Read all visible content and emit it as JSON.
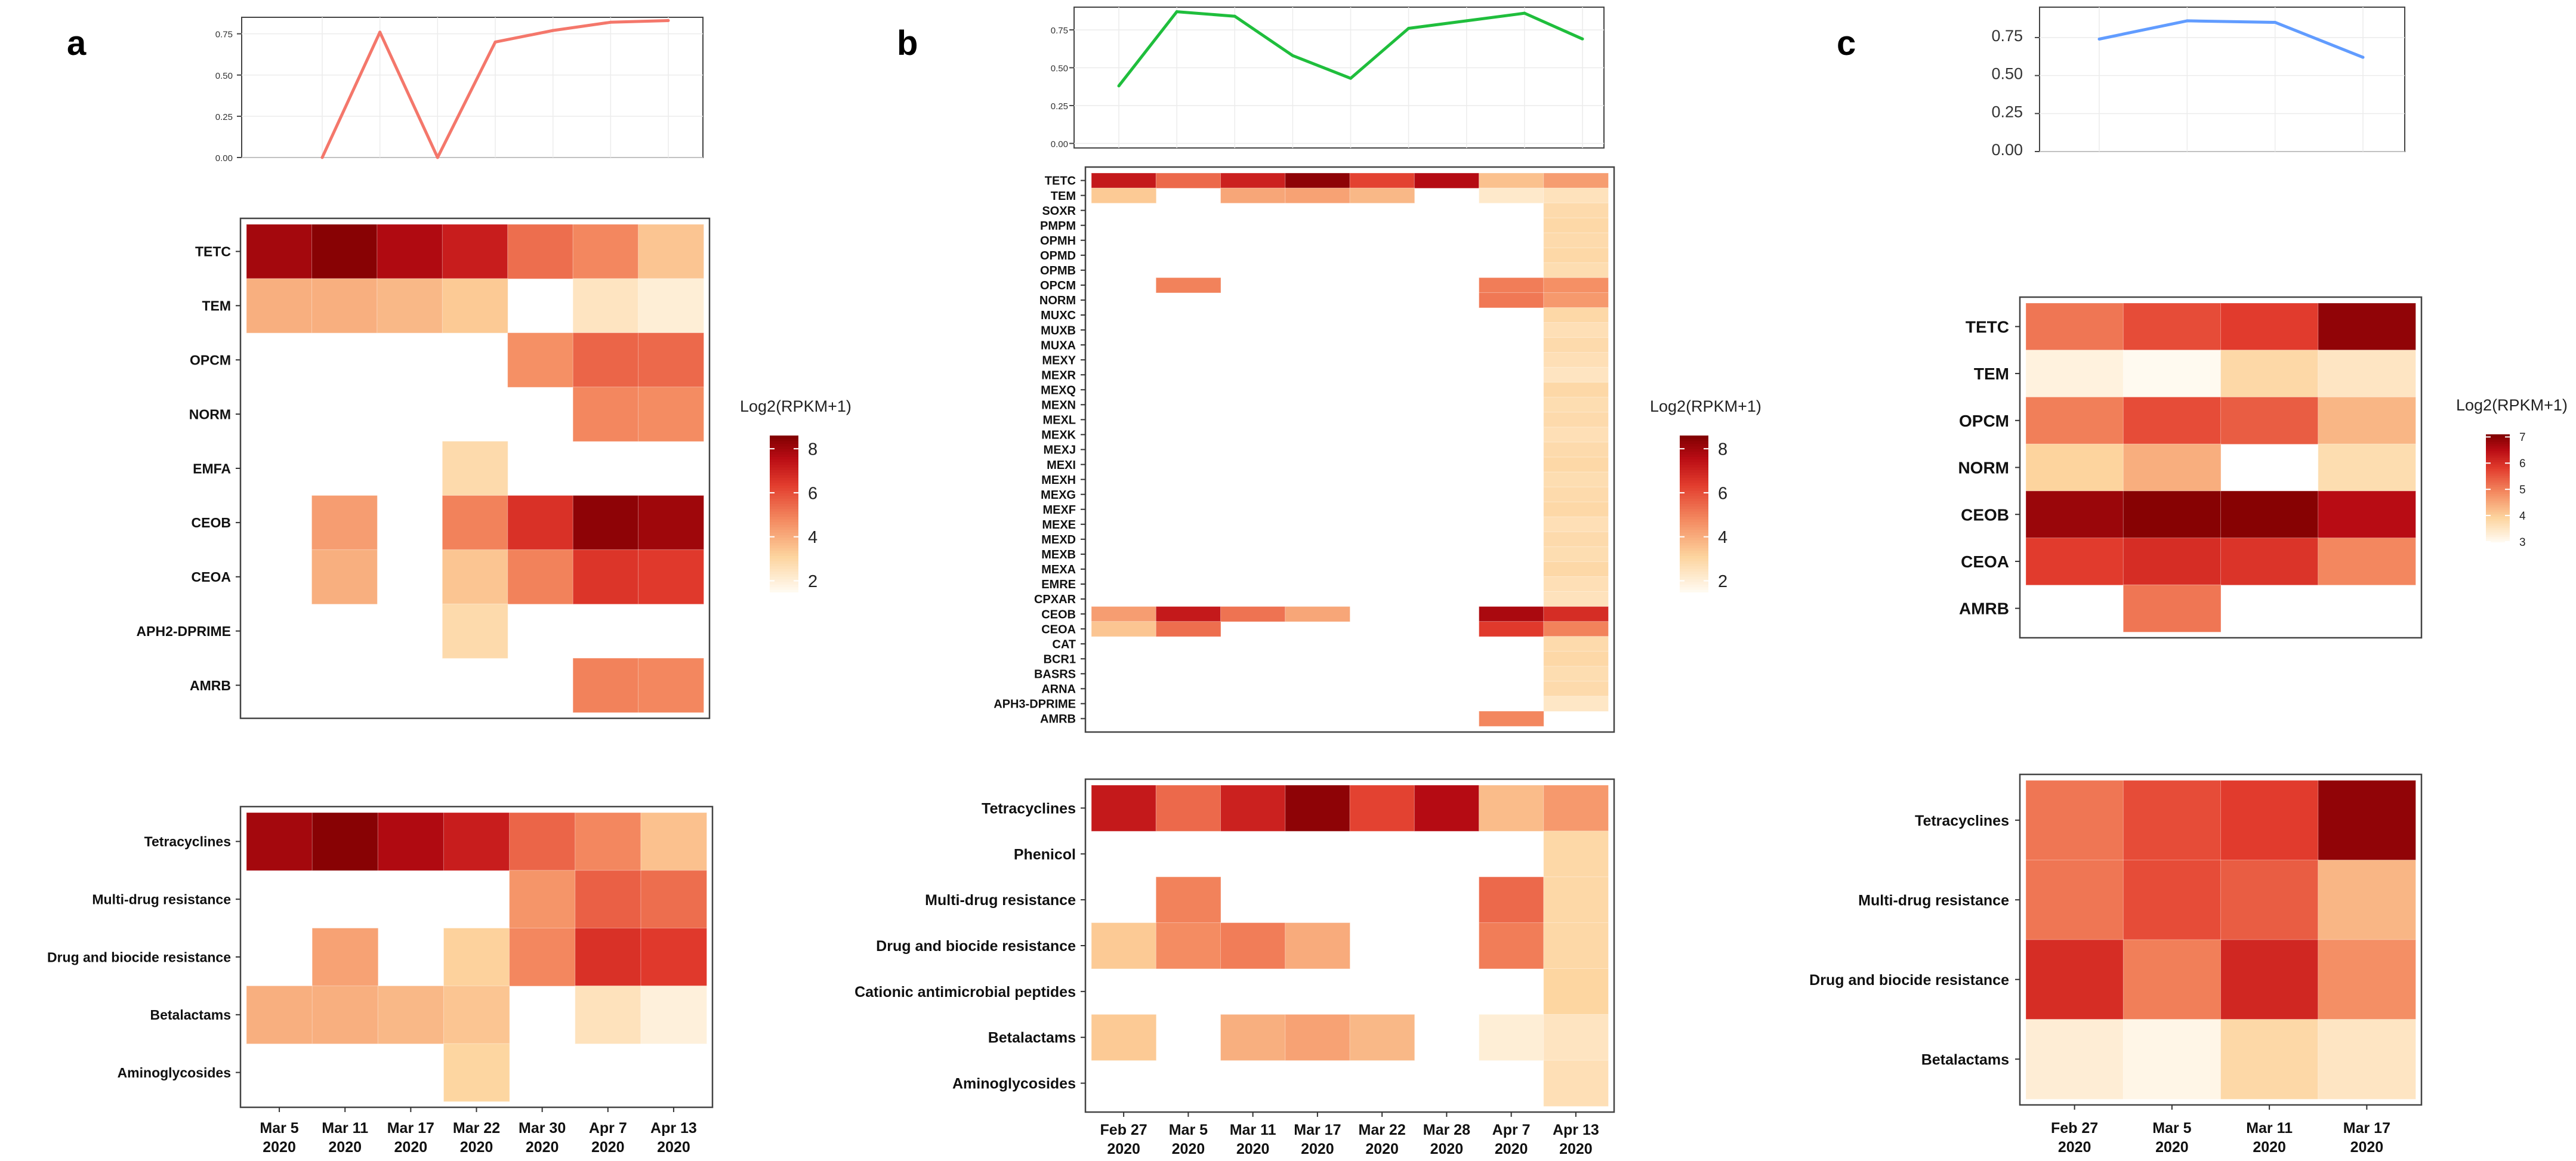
{
  "panel_labels": [
    "a",
    "b",
    "c"
  ],
  "chart_data": [
    {
      "id": "a-line",
      "type": "line",
      "color": "#F4776B",
      "yticks": [
        "0.00",
        "0.25",
        "0.50",
        "0.75"
      ],
      "ylim": [
        0,
        0.85
      ],
      "values": [
        0.0,
        0.76,
        0.0,
        0.7,
        0.77,
        0.82,
        0.83
      ]
    },
    {
      "id": "a-genes",
      "type": "heatmap",
      "columns": [
        "Mar 5",
        "Mar 11",
        "Mar 17",
        "Mar 22",
        "Mar 30",
        "Apr 7",
        "Apr 13"
      ],
      "column_years": [
        "2020",
        "2020",
        "2020",
        "2020",
        "2020",
        "2020",
        "2020"
      ],
      "rows": [
        "TETC",
        "TEM",
        "OPCM",
        "NORM",
        "EMFA",
        "CEOB",
        "CEOA",
        "APH2-DPRIME",
        "AMRB"
      ],
      "values": [
        [
          7.9,
          8.4,
          7.7,
          7.1,
          5.3,
          4.8,
          3.4
        ],
        [
          3.9,
          3.9,
          3.7,
          3.3,
          null,
          2.4,
          2.0
        ],
        [
          null,
          null,
          null,
          null,
          4.6,
          5.5,
          5.4
        ],
        [
          null,
          null,
          null,
          null,
          null,
          4.8,
          4.7
        ],
        [
          null,
          null,
          null,
          2.8,
          null,
          null,
          null
        ],
        [
          null,
          4.3,
          null,
          4.9,
          6.6,
          8.3,
          8.0
        ],
        [
          null,
          3.9,
          null,
          3.4,
          4.9,
          6.5,
          6.4
        ],
        [
          null,
          null,
          null,
          2.8,
          null,
          null,
          null
        ],
        [
          null,
          null,
          null,
          null,
          null,
          4.9,
          4.8
        ]
      ],
      "legend_title": "Log2(RPKM+1)",
      "legend_ticks": [
        "2",
        "4",
        "6",
        "8"
      ],
      "scale": [
        1.5,
        8.6
      ]
    },
    {
      "id": "a-classes",
      "type": "heatmap",
      "columns": [
        "Mar 5",
        "Mar 11",
        "Mar 17",
        "Mar 22",
        "Mar 30",
        "Apr 7",
        "Apr 13"
      ],
      "column_years": [
        "2020",
        "2020",
        "2020",
        "2020",
        "2020",
        "2020",
        "2020"
      ],
      "rows": [
        "Tetracyclines",
        "Multi-drug resistance",
        "Drug and biocide resistance",
        "Betalactams",
        "Aminoglycosides"
      ],
      "values": [
        [
          7.9,
          8.4,
          7.7,
          7.1,
          5.5,
          4.8,
          3.5
        ],
        [
          null,
          null,
          null,
          null,
          4.5,
          5.6,
          5.3
        ],
        [
          null,
          4.2,
          null,
          3.1,
          4.8,
          6.6,
          6.4
        ],
        [
          3.9,
          3.9,
          3.7,
          3.4,
          null,
          2.5,
          1.9
        ],
        [
          null,
          null,
          null,
          3.0,
          null,
          null,
          null
        ]
      ],
      "scale": [
        1.5,
        8.6
      ]
    },
    {
      "id": "b-line",
      "type": "line",
      "color": "#1FBE3C",
      "yticks": [
        "0.00",
        "0.25",
        "0.50",
        "0.75"
      ],
      "ylim": [
        -0.03,
        0.9
      ],
      "values": [
        0.38,
        0.87,
        0.84,
        0.58,
        0.43,
        0.76,
        0.81,
        0.86,
        0.69
      ]
    },
    {
      "id": "b-genes",
      "type": "heatmap",
      "columns": [
        "Feb 27",
        "Mar 5",
        "Mar 11",
        "Mar 17",
        "Mar 22",
        "Mar 28",
        "Apr 7",
        "Apr 13"
      ],
      "column_years": [
        "2020",
        "2020",
        "2020",
        "2020",
        "2020",
        "2020",
        "2020",
        "2020"
      ],
      "rows": [
        "TETC",
        "TEM",
        "SOXR",
        "PMPM",
        "OPMH",
        "OPMD",
        "OPMB",
        "OPCM",
        "NORM",
        "MUXC",
        "MUXB",
        "MUXA",
        "MEXY",
        "MEXR",
        "MEXQ",
        "MEXN",
        "MEXL",
        "MEXK",
        "MEXJ",
        "MEXI",
        "MEXH",
        "MEXG",
        "MEXF",
        "MEXE",
        "MEXD",
        "MEXB",
        "MEXA",
        "EMRE",
        "CPXAR",
        "CEOB",
        "CEOA",
        "CAT",
        "BCR1",
        "BASRS",
        "ARNA",
        "APH3-DPRIME",
        "AMRB"
      ],
      "values": [
        [
          7.2,
          5.4,
          7.0,
          8.3,
          6.2,
          7.6,
          3.5,
          4.3
        ],
        [
          3.3,
          null,
          4.1,
          4.2,
          3.7,
          null,
          2.2,
          2.5
        ],
        [
          null,
          null,
          null,
          null,
          null,
          null,
          null,
          2.8
        ],
        [
          null,
          null,
          null,
          null,
          null,
          null,
          null,
          2.9
        ],
        [
          null,
          null,
          null,
          null,
          null,
          null,
          null,
          2.8
        ],
        [
          null,
          null,
          null,
          null,
          null,
          null,
          null,
          2.9
        ],
        [
          null,
          null,
          null,
          null,
          null,
          null,
          null,
          2.7
        ],
        [
          null,
          4.9,
          null,
          null,
          null,
          null,
          5.0,
          4.6
        ],
        [
          null,
          null,
          null,
          null,
          null,
          null,
          5.1,
          4.4
        ],
        [
          null,
          null,
          null,
          null,
          null,
          null,
          null,
          2.9
        ],
        [
          null,
          null,
          null,
          null,
          null,
          null,
          null,
          2.6
        ],
        [
          null,
          null,
          null,
          null,
          null,
          null,
          null,
          2.8
        ],
        [
          null,
          null,
          null,
          null,
          null,
          null,
          null,
          2.6
        ],
        [
          null,
          null,
          null,
          null,
          null,
          null,
          null,
          2.4
        ],
        [
          null,
          null,
          null,
          null,
          null,
          null,
          null,
          2.9
        ],
        [
          null,
          null,
          null,
          null,
          null,
          null,
          null,
          2.7
        ],
        [
          null,
          null,
          null,
          null,
          null,
          null,
          null,
          2.8
        ],
        [
          null,
          null,
          null,
          null,
          null,
          null,
          null,
          2.6
        ],
        [
          null,
          null,
          null,
          null,
          null,
          null,
          null,
          2.8
        ],
        [
          null,
          null,
          null,
          null,
          null,
          null,
          null,
          2.9
        ],
        [
          null,
          null,
          null,
          null,
          null,
          null,
          null,
          2.7
        ],
        [
          null,
          null,
          null,
          null,
          null,
          null,
          null,
          2.8
        ],
        [
          null,
          null,
          null,
          null,
          null,
          null,
          null,
          2.9
        ],
        [
          null,
          null,
          null,
          null,
          null,
          null,
          null,
          2.6
        ],
        [
          null,
          null,
          null,
          null,
          null,
          null,
          null,
          2.8
        ],
        [
          null,
          null,
          null,
          null,
          null,
          null,
          null,
          2.7
        ],
        [
          null,
          null,
          null,
          null,
          null,
          null,
          null,
          2.9
        ],
        [
          null,
          null,
          null,
          null,
          null,
          null,
          null,
          2.6
        ],
        [
          null,
          null,
          null,
          null,
          null,
          null,
          null,
          2.5
        ],
        [
          4.3,
          7.2,
          5.2,
          4.1,
          null,
          null,
          7.8,
          6.7
        ],
        [
          3.4,
          5.3,
          null,
          null,
          null,
          null,
          6.4,
          4.9
        ],
        [
          null,
          null,
          null,
          null,
          null,
          null,
          null,
          2.8
        ],
        [
          null,
          null,
          null,
          null,
          null,
          null,
          null,
          2.9
        ],
        [
          null,
          null,
          null,
          null,
          null,
          null,
          null,
          2.7
        ],
        [
          null,
          null,
          null,
          null,
          null,
          null,
          null,
          2.8
        ],
        [
          null,
          null,
          null,
          null,
          null,
          null,
          null,
          2.3
        ],
        [
          null,
          null,
          null,
          null,
          null,
          null,
          4.8,
          null
        ]
      ],
      "legend_title": "Log2(RPKM+1)",
      "legend_ticks": [
        "2",
        "4",
        "6",
        "8"
      ],
      "scale": [
        1.5,
        8.6
      ]
    },
    {
      "id": "b-classes",
      "type": "heatmap",
      "columns": [
        "Feb 27",
        "Mar 5",
        "Mar 11",
        "Mar 17",
        "Mar 22",
        "Mar 28",
        "Apr 7",
        "Apr 13"
      ],
      "column_years": [
        "2020",
        "2020",
        "2020",
        "2020",
        "2020",
        "2020",
        "2020",
        "2020"
      ],
      "rows": [
        "Tetracyclines",
        "Phenicol",
        "Multi-drug resistance",
        "Drug and biocide resistance",
        "Cationic antimicrobial peptides",
        "Betalactams",
        "Aminoglycosides"
      ],
      "values": [
        [
          7.2,
          5.4,
          7.0,
          8.3,
          6.2,
          7.6,
          3.6,
          4.4
        ],
        [
          null,
          null,
          null,
          null,
          null,
          null,
          null,
          2.9
        ],
        [
          null,
          4.9,
          null,
          null,
          null,
          null,
          5.4,
          2.9
        ],
        [
          3.3,
          4.7,
          5.0,
          4.0,
          null,
          null,
          5.0,
          2.9
        ],
        [
          null,
          null,
          null,
          null,
          null,
          null,
          null,
          3.0
        ],
        [
          3.3,
          null,
          3.9,
          4.2,
          3.7,
          null,
          2.0,
          2.4
        ],
        [
          null,
          null,
          null,
          null,
          null,
          null,
          null,
          2.6
        ]
      ],
      "scale": [
        1.5,
        8.6
      ]
    },
    {
      "id": "c-line",
      "type": "line",
      "color": "#619CFF",
      "yticks": [
        "0.00",
        "0.25",
        "0.50",
        "0.75"
      ],
      "ylim": [
        0,
        0.95
      ],
      "values": [
        0.74,
        0.86,
        0.85,
        0.62
      ]
    },
    {
      "id": "c-genes",
      "type": "heatmap",
      "columns": [
        "Feb 27",
        "Mar 5",
        "Mar 11",
        "Mar 17"
      ],
      "column_years": [
        "2020",
        "2020",
        "2020",
        "2020"
      ],
      "rows": [
        "TETC",
        "TEM",
        "OPCM",
        "NORM",
        "CEOB",
        "CEOA",
        "AMRB"
      ],
      "values": [
        [
          5.1,
          5.6,
          5.8,
          6.9
        ],
        [
          3.2,
          3.0,
          3.8,
          3.5
        ],
        [
          5.0,
          5.6,
          5.4,
          4.3
        ],
        [
          3.9,
          4.4,
          null,
          3.7
        ],
        [
          6.8,
          7.0,
          7.0,
          6.5
        ],
        [
          5.8,
          6.0,
          5.9,
          4.9
        ],
        [
          null,
          5.1,
          null,
          null
        ]
      ],
      "legend_title": "Log2(RPKM+1)",
      "legend_ticks": [
        "3",
        "4",
        "5",
        "6",
        "7"
      ],
      "scale": [
        3,
        7.1
      ]
    },
    {
      "id": "c-classes",
      "type": "heatmap",
      "columns": [
        "Feb 27",
        "Mar 5",
        "Mar 11",
        "Mar 17"
      ],
      "column_years": [
        "2020",
        "2020",
        "2020",
        "2020"
      ],
      "rows": [
        "Tetracyclines",
        "Multi-drug resistance",
        "Drug and biocide resistance",
        "Betalactams"
      ],
      "values": [
        [
          5.1,
          5.6,
          5.8,
          6.9
        ],
        [
          5.1,
          5.6,
          5.4,
          4.3
        ],
        [
          6.0,
          5.0,
          6.1,
          4.8
        ],
        [
          3.3,
          3.1,
          3.8,
          3.5
        ]
      ],
      "scale": [
        3,
        7.1
      ]
    }
  ]
}
